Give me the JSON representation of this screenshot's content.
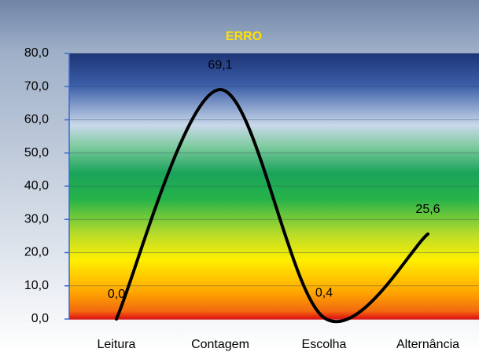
{
  "chart_data": {
    "type": "line",
    "title": "ERRO",
    "categories": [
      "Leitura",
      "Contagem",
      "Escolha",
      "Alternância"
    ],
    "values": [
      0,
      69.1,
      0.4,
      25.6
    ],
    "value_labels": [
      "0,0",
      "69,1",
      "0,4",
      "25,6"
    ],
    "color": "#000000",
    "ylim": [
      0,
      80
    ],
    "yticks": [
      {
        "value": 0,
        "label": "0,0"
      },
      {
        "value": 10,
        "label": "10,0"
      },
      {
        "value": 20,
        "label": "20,0"
      },
      {
        "value": 30,
        "label": "30,0"
      },
      {
        "value": 40,
        "label": "40,0"
      },
      {
        "value": 50,
        "label": "50,0"
      },
      {
        "value": 60,
        "label": "60,0"
      },
      {
        "value": 70,
        "label": "70,0"
      },
      {
        "value": 80,
        "label": "80,0"
      }
    ],
    "grid": true,
    "smooth": true
  }
}
